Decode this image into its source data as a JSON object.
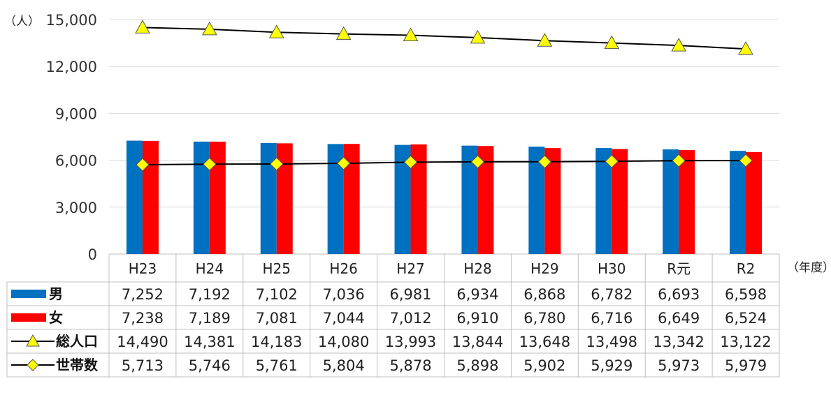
{
  "chart_data": {
    "type": "bar",
    "y_unit": "（人）",
    "x_unit": "（年度）",
    "categories": [
      "H23",
      "H24",
      "H25",
      "H26",
      "H27",
      "H28",
      "H29",
      "H30",
      "R元",
      "R2"
    ],
    "ylim": [
      0,
      15000
    ],
    "yticks": [
      "0",
      "3,000",
      "6,000",
      "9,000",
      "12,000",
      "15,000"
    ],
    "grid": true,
    "legend": "data-table",
    "series": [
      {
        "name": "男",
        "kind": "bar",
        "color": "#0070C0",
        "values": [
          7252,
          7192,
          7102,
          7036,
          6981,
          6934,
          6868,
          6782,
          6693,
          6598
        ],
        "labels": [
          "7,252",
          "7,192",
          "7,102",
          "7,036",
          "6,981",
          "6,934",
          "6,868",
          "6,782",
          "6,693",
          "6,598"
        ]
      },
      {
        "name": "女",
        "kind": "bar",
        "color": "#FF0000",
        "values": [
          7238,
          7189,
          7081,
          7044,
          7012,
          6910,
          6780,
          6716,
          6649,
          6524
        ],
        "labels": [
          "7,238",
          "7,189",
          "7,081",
          "7,044",
          "7,012",
          "6,910",
          "6,780",
          "6,716",
          "6,649",
          "6,524"
        ]
      },
      {
        "name": "総人口",
        "kind": "line",
        "marker": "triangle",
        "color": "#000000",
        "marker_color": "#FFFF00",
        "values": [
          14490,
          14381,
          14183,
          14080,
          13993,
          13844,
          13648,
          13498,
          13342,
          13122
        ],
        "labels": [
          "14,490",
          "14,381",
          "14,183",
          "14,080",
          "13,993",
          "13,844",
          "13,648",
          "13,498",
          "13,342",
          "13,122"
        ]
      },
      {
        "name": "世帯数",
        "kind": "line",
        "marker": "diamond",
        "color": "#000000",
        "marker_color": "#FFFF00",
        "values": [
          5713,
          5746,
          5761,
          5804,
          5878,
          5898,
          5902,
          5929,
          5973,
          5979
        ],
        "labels": [
          "5,713",
          "5,746",
          "5,761",
          "5,804",
          "5,878",
          "5,898",
          "5,902",
          "5,929",
          "5,973",
          "5,979"
        ]
      }
    ]
  }
}
